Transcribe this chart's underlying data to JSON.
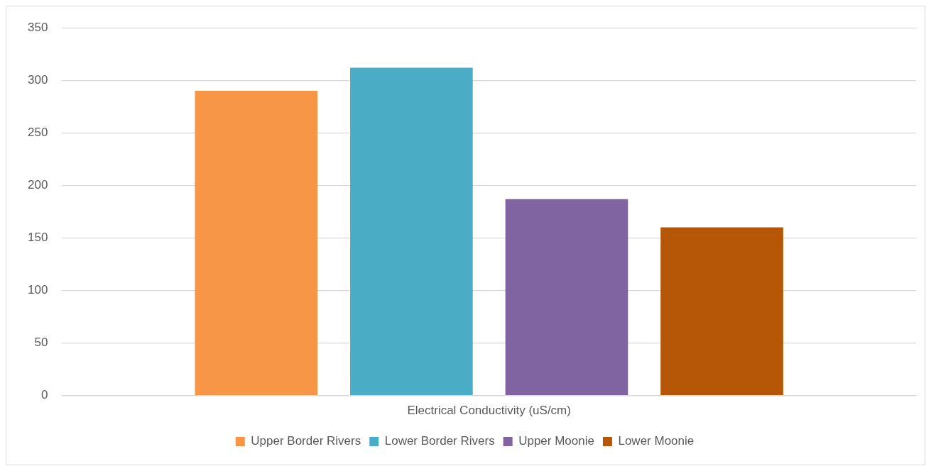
{
  "chart_data": {
    "type": "bar",
    "categories": [
      "Electrical Conductivity (uS/cm)"
    ],
    "series": [
      {
        "name": "Upper Border Rivers",
        "color": "#f79646",
        "values": [
          290
        ]
      },
      {
        "name": "Lower Border Rivers",
        "color": "#4bacc6",
        "values": [
          312
        ]
      },
      {
        "name": "Upper Moonie",
        "color": "#8064a2",
        "values": [
          187
        ]
      },
      {
        "name": "Lower Moonie",
        "color": "#b65708",
        "values": [
          160
        ]
      }
    ],
    "ylim": [
      0,
      350
    ],
    "yticks": [
      0,
      50,
      100,
      150,
      200,
      250,
      300,
      350
    ],
    "grid": "y",
    "legend": "bottom"
  }
}
